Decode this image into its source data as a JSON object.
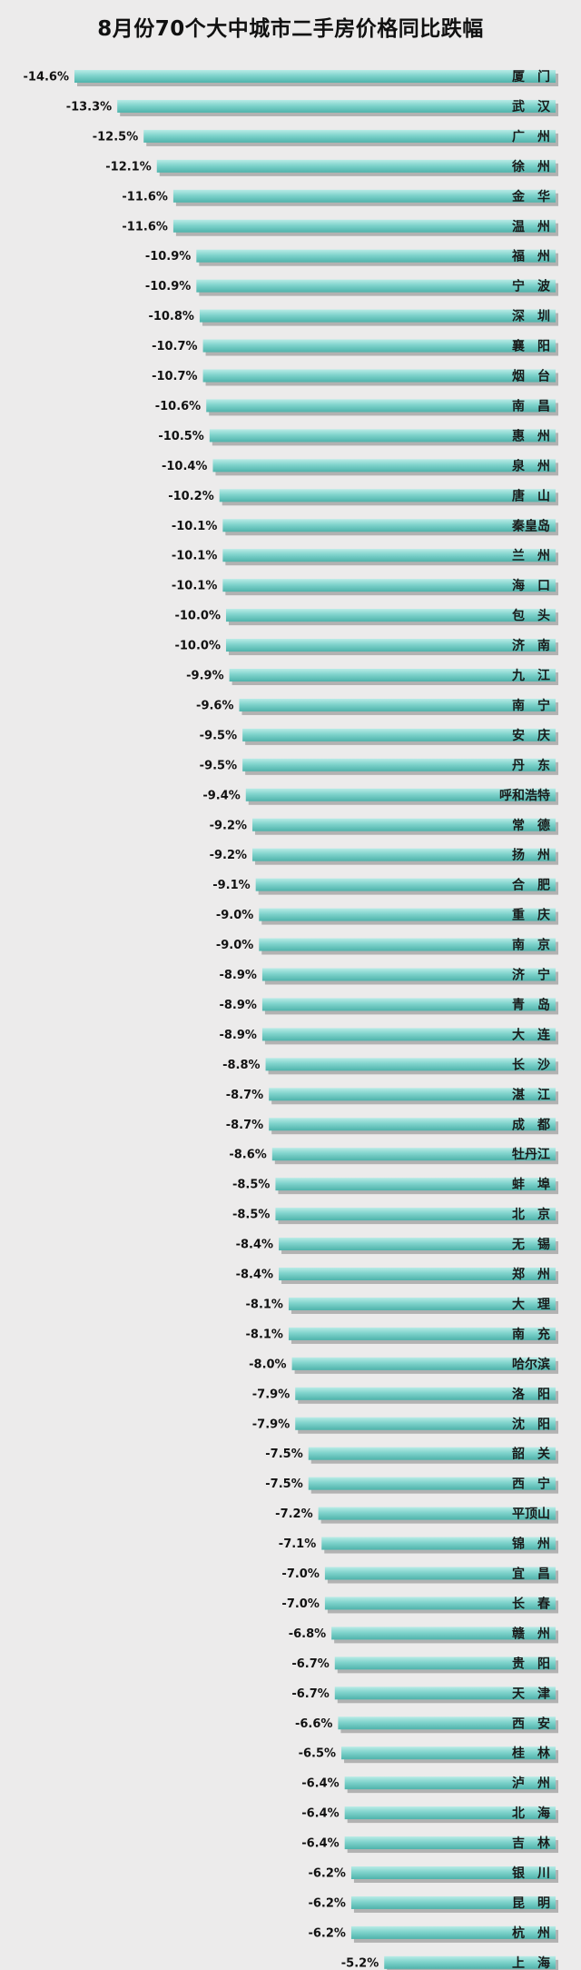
{
  "chart_data": {
    "type": "bar",
    "orientation": "horizontal",
    "title": "8月份70个大中城市二手房价格同比跌幅",
    "value_suffix": "%",
    "bar_color": "#7fd3cc",
    "bar_shadow_color": "#9a9a9a",
    "background_color": "#ecebeb",
    "categories": [
      "厦门",
      "武汉",
      "广州",
      "徐州",
      "金华",
      "温州",
      "福州",
      "宁波",
      "深圳",
      "襄阳",
      "烟台",
      "南昌",
      "惠州",
      "泉州",
      "唐山",
      "秦皇岛",
      "兰州",
      "海口",
      "包头",
      "济南",
      "九江",
      "南宁",
      "安庆",
      "丹东",
      "呼和浩特",
      "常德",
      "扬州",
      "合肥",
      "重庆",
      "南京",
      "济宁",
      "青岛",
      "大连",
      "长沙",
      "湛江",
      "成都",
      "牡丹江",
      "蚌埠",
      "北京",
      "无锡",
      "郑州",
      "大理",
      "南充",
      "哈尔滨",
      "洛阳",
      "沈阳",
      "韶关",
      "西宁",
      "平顶山",
      "锦州",
      "宜昌",
      "长春",
      "赣州",
      "贵阳",
      "天津",
      "西安",
      "桂林",
      "泸州",
      "北海",
      "吉林",
      "银川",
      "昆明",
      "杭州",
      "上海"
    ],
    "values": [
      -14.6,
      -13.3,
      -12.5,
      -12.1,
      -11.6,
      -11.6,
      -10.9,
      -10.9,
      -10.8,
      -10.7,
      -10.7,
      -10.6,
      -10.5,
      -10.4,
      -10.2,
      -10.1,
      -10.1,
      -10.1,
      -10.0,
      -10.0,
      -9.9,
      -9.6,
      -9.5,
      -9.5,
      -9.4,
      -9.2,
      -9.2,
      -9.1,
      -9.0,
      -9.0,
      -8.9,
      -8.9,
      -8.9,
      -8.8,
      -8.7,
      -8.7,
      -8.6,
      -8.5,
      -8.5,
      -8.4,
      -8.4,
      -8.1,
      -8.1,
      -8.0,
      -7.9,
      -7.9,
      -7.5,
      -7.5,
      -7.2,
      -7.1,
      -7.0,
      -7.0,
      -6.8,
      -6.7,
      -6.7,
      -6.6,
      -6.5,
      -6.4,
      -6.4,
      -6.4,
      -6.2,
      -6.2,
      -6.2,
      -5.2
    ],
    "value_labels": [
      "-14.6%",
      "-13.3%",
      "-12.5%",
      "-12.1%",
      "-11.6%",
      "-11.6%",
      "-10.9%",
      "-10.9%",
      "-10.8%",
      "-10.7%",
      "-10.7%",
      "-10.6%",
      "-10.5%",
      "-10.4%",
      "-10.2%",
      "-10.1%",
      "-10.1%",
      "-10.1%",
      "-10.0%",
      "-10.0%",
      "-9.9%",
      "-9.6%",
      "-9.5%",
      "-9.5%",
      "-9.4%",
      "-9.2%",
      "-9.2%",
      "-9.1%",
      "-9.0%",
      "-9.0%",
      "-8.9%",
      "-8.9%",
      "-8.9%",
      "-8.8%",
      "-8.7%",
      "-8.7%",
      "-8.6%",
      "-8.5%",
      "-8.5%",
      "-8.4%",
      "-8.4%",
      "-8.1%",
      "-8.1%",
      "-8.0%",
      "-7.9%",
      "-7.9%",
      "-7.5%",
      "-7.5%",
      "-7.2%",
      "-7.1%",
      "-7.0%",
      "-7.0%",
      "-6.8%",
      "-6.7%",
      "-6.7%",
      "-6.6%",
      "-6.5%",
      "-6.4%",
      "-6.4%",
      "-6.4%",
      "-6.2%",
      "-6.2%",
      "-6.2%",
      "-5.2%"
    ],
    "xlim": [
      -16,
      0
    ],
    "grid": false,
    "legend": "none"
  }
}
